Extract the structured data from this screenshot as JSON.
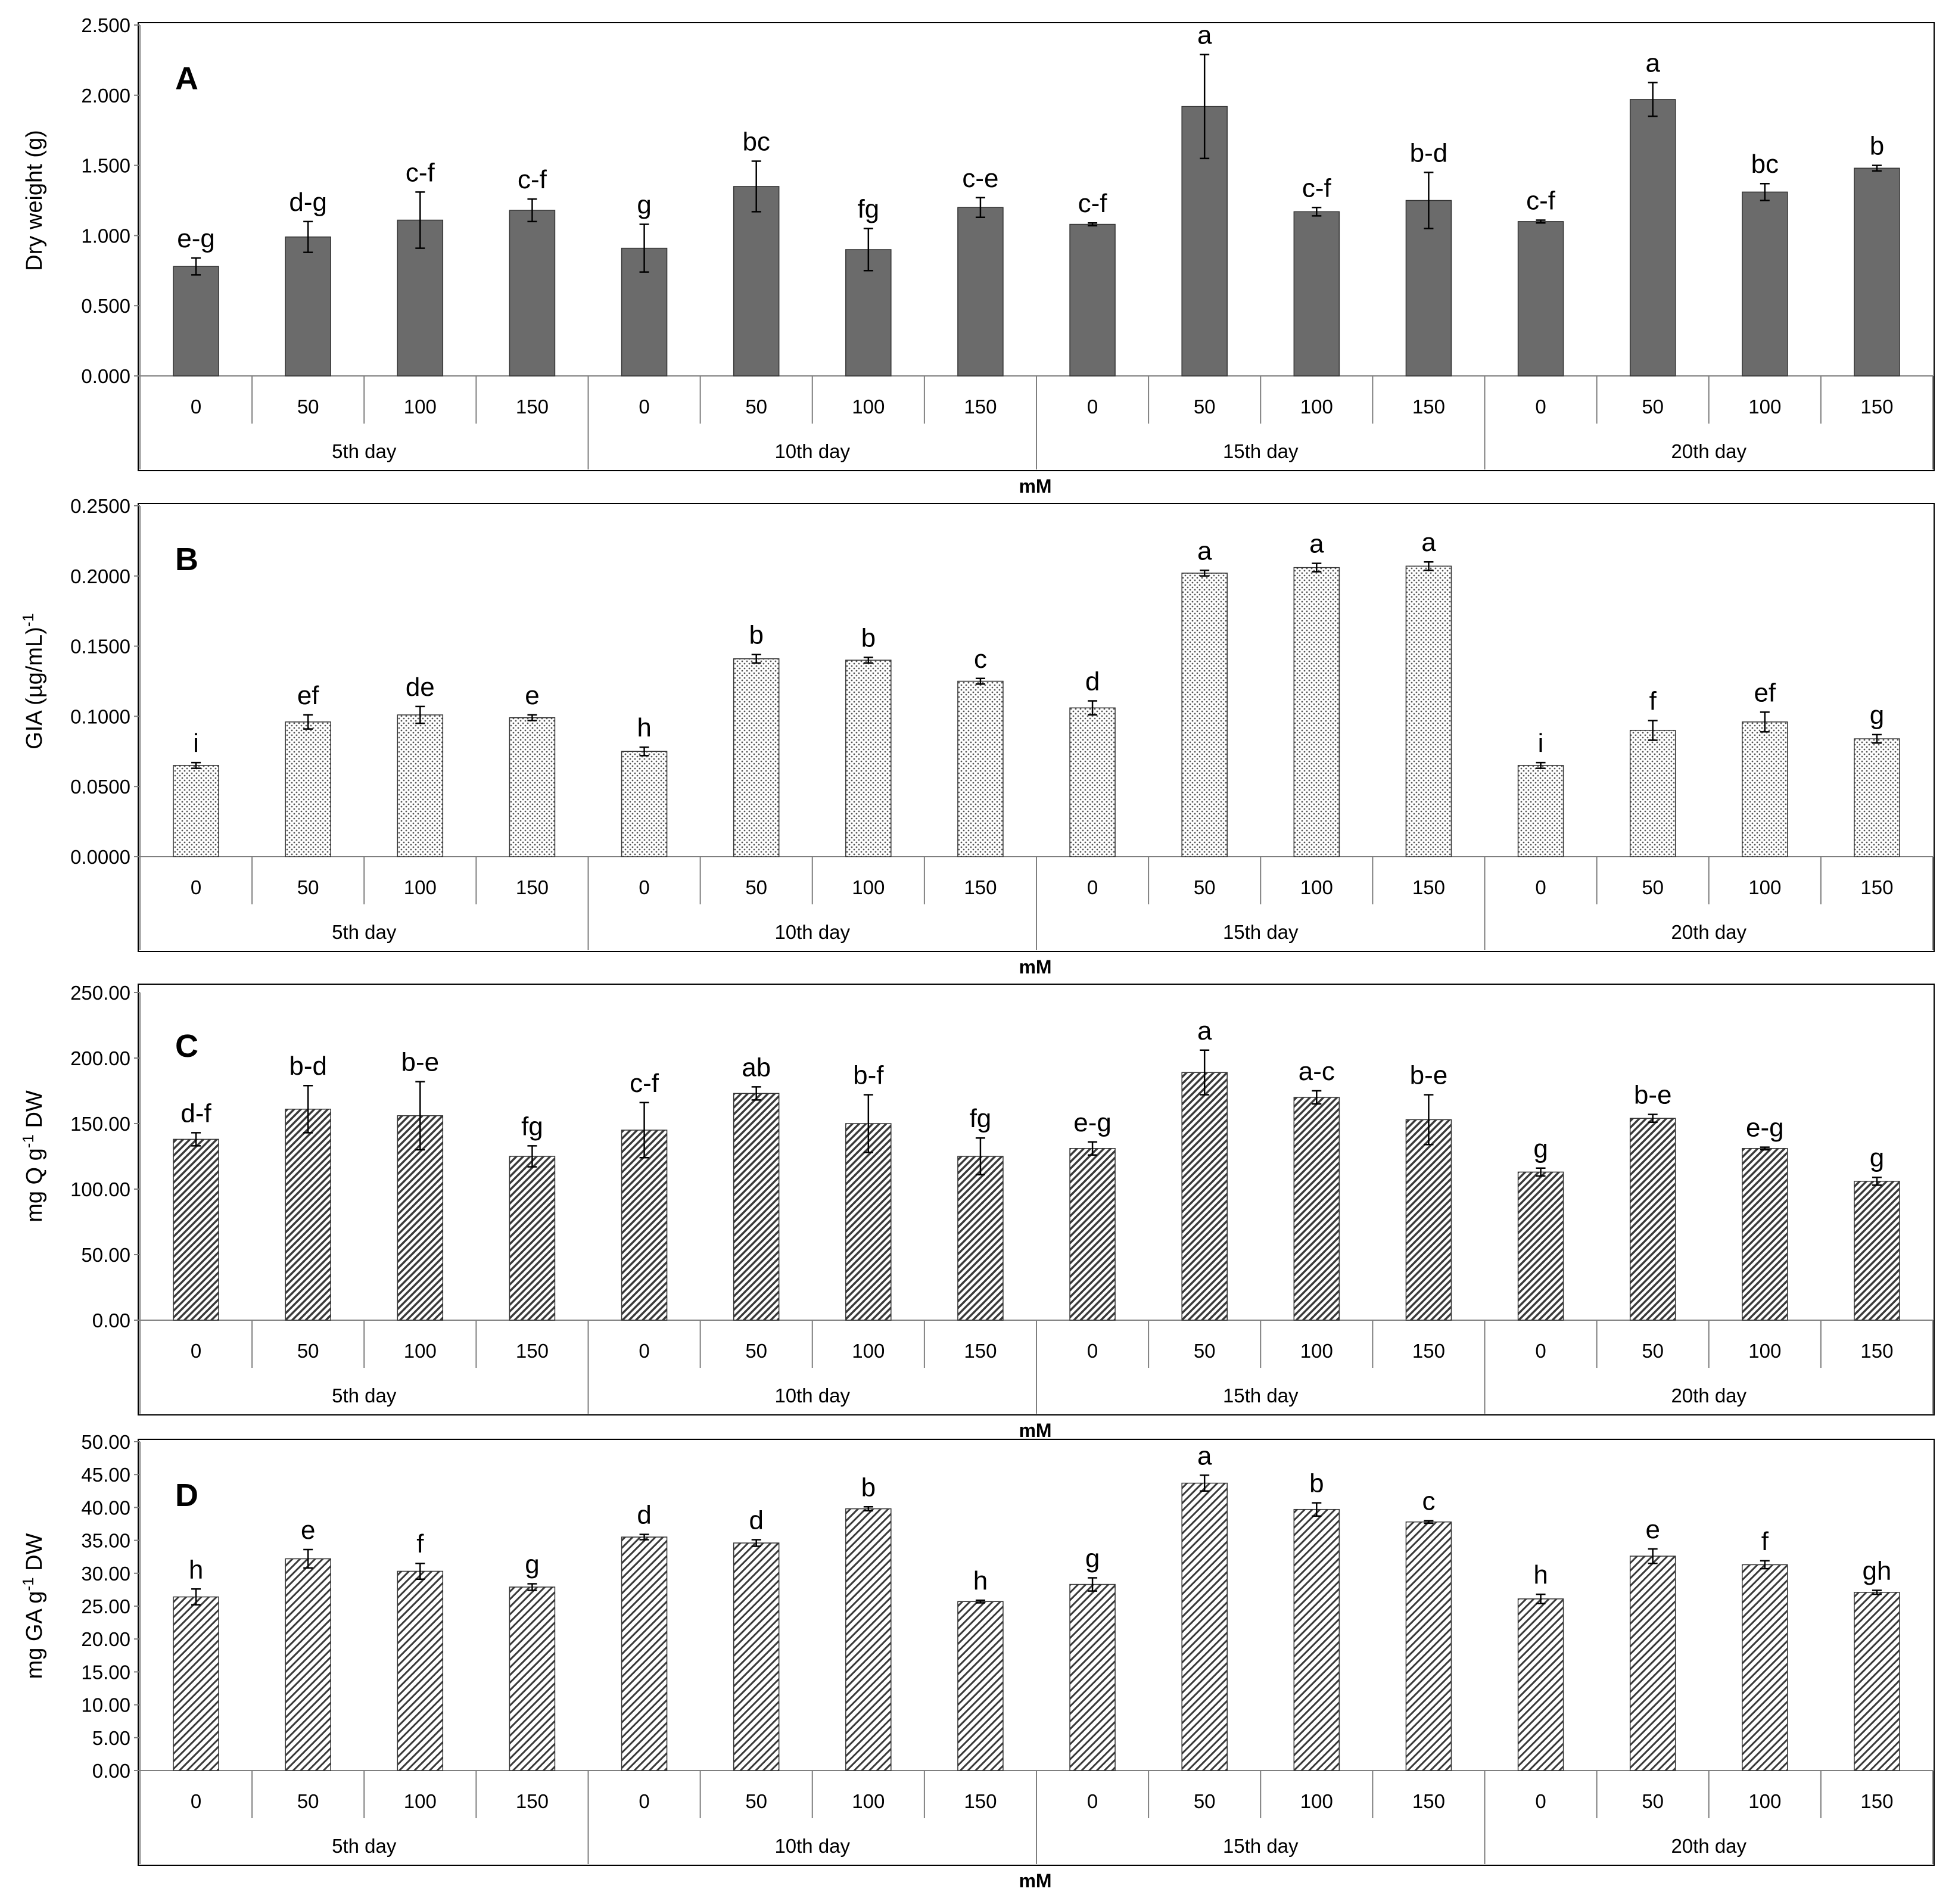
{
  "figure": {
    "colors": {
      "bar_fill_A": "#6b6b6b",
      "bar_stroke": "#333333",
      "axis": "#7f7f7f",
      "frame": "#000000",
      "text": "#000000"
    }
  },
  "chart_data": [
    {
      "type": "bar",
      "panel_label": "A",
      "pattern": "solid-dark",
      "ylabel": "Dry weight (g)",
      "xlabel": "mM",
      "ylim": [
        0,
        2.5
      ],
      "yticks": [
        "0.000",
        "0.500",
        "1.000",
        "1.500",
        "2.000",
        "2.500"
      ],
      "tick_values": [
        0,
        0.5,
        1.0,
        1.5,
        2.0,
        2.5
      ],
      "groups": [
        "5th day",
        "10th day",
        "15th day",
        "20th day"
      ],
      "categories": [
        "0",
        "50",
        "100",
        "150",
        "0",
        "50",
        "100",
        "150",
        "0",
        "50",
        "100",
        "150",
        "0",
        "50",
        "100",
        "150"
      ],
      "values": [
        0.78,
        0.99,
        1.11,
        1.18,
        0.91,
        1.35,
        0.9,
        1.2,
        1.08,
        1.92,
        1.17,
        1.25,
        1.1,
        1.97,
        1.31,
        1.48
      ],
      "errors": [
        0.06,
        0.11,
        0.2,
        0.08,
        0.17,
        0.18,
        0.15,
        0.07,
        0.01,
        0.37,
        0.03,
        0.2,
        0.01,
        0.12,
        0.06,
        0.02
      ],
      "letters": [
        "e-g",
        "d-g",
        "c-f",
        "c-f",
        "g",
        "bc",
        "fg",
        "c-e",
        "c-f",
        "a",
        "c-f",
        "b-d",
        "c-f",
        "a",
        "bc",
        "b"
      ]
    },
    {
      "type": "bar",
      "panel_label": "B",
      "pattern": "dots",
      "ylabel": "GIA (µg/mL)",
      "ylabel_sup": "-1",
      "xlabel": "mM",
      "ylim": [
        0,
        0.25
      ],
      "yticks": [
        "0.0000",
        "0.0500",
        "0.1000",
        "0.1500",
        "0.2000",
        "0.2500"
      ],
      "tick_values": [
        0,
        0.05,
        0.1,
        0.15,
        0.2,
        0.25
      ],
      "groups": [
        "5th day",
        "10th day",
        "15th day",
        "20th day"
      ],
      "categories": [
        "0",
        "50",
        "100",
        "150",
        "0",
        "50",
        "100",
        "150",
        "0",
        "50",
        "100",
        "150",
        "0",
        "50",
        "100",
        "150"
      ],
      "values": [
        0.065,
        0.096,
        0.101,
        0.099,
        0.075,
        0.141,
        0.14,
        0.125,
        0.106,
        0.202,
        0.206,
        0.207,
        0.065,
        0.09,
        0.096,
        0.084
      ],
      "errors": [
        0.002,
        0.005,
        0.006,
        0.002,
        0.003,
        0.003,
        0.002,
        0.002,
        0.005,
        0.002,
        0.003,
        0.003,
        0.002,
        0.007,
        0.007,
        0.003
      ],
      "letters": [
        "i",
        "ef",
        "de",
        "e",
        "h",
        "b",
        "b",
        "c",
        "d",
        "a",
        "a",
        "a",
        "i",
        "f",
        "ef",
        "g"
      ]
    },
    {
      "type": "bar",
      "panel_label": "C",
      "pattern": "diagonal-dense",
      "ylabel": "mg Q g",
      "ylabel_sup": "-1",
      "ylabel_tail": " DW",
      "xlabel": "mM",
      "ylim": [
        0,
        250
      ],
      "yticks": [
        "0.00",
        "50.00",
        "100.00",
        "150.00",
        "200.00",
        "250.00"
      ],
      "tick_values": [
        0,
        50,
        100,
        150,
        200,
        250
      ],
      "groups": [
        "5th day",
        "10th day",
        "15th day",
        "20th day"
      ],
      "categories": [
        "0",
        "50",
        "100",
        "150",
        "0",
        "50",
        "100",
        "150",
        "0",
        "50",
        "100",
        "150",
        "0",
        "50",
        "100",
        "150"
      ],
      "values": [
        138,
        161,
        156,
        125,
        145,
        173,
        150,
        125,
        131,
        189,
        170,
        153,
        113,
        154,
        131,
        106
      ],
      "errors": [
        5,
        18,
        26,
        8,
        21,
        5,
        22,
        14,
        5,
        17,
        5,
        19,
        3,
        3,
        1,
        3
      ],
      "letters": [
        "d-f",
        "b-d",
        "b-e",
        "fg",
        "c-f",
        "ab",
        "b-f",
        "fg",
        "e-g",
        "a",
        "a-c",
        "b-e",
        "g",
        "b-e",
        "e-g",
        "g"
      ]
    },
    {
      "type": "bar",
      "panel_label": "D",
      "pattern": "diagonal",
      "ylabel": "mg GA g",
      "ylabel_sup": "-1",
      "ylabel_tail": " DW",
      "xlabel": "mM",
      "ylim": [
        0,
        50
      ],
      "yticks": [
        "0.00",
        "5.00",
        "10.00",
        "15.00",
        "20.00",
        "25.00",
        "30.00",
        "35.00",
        "40.00",
        "45.00",
        "50.00"
      ],
      "tick_values": [
        0,
        5,
        10,
        15,
        20,
        25,
        30,
        35,
        40,
        45,
        50
      ],
      "groups": [
        "5th day",
        "10th day",
        "15th day",
        "20th day"
      ],
      "categories": [
        "0",
        "50",
        "100",
        "150",
        "0",
        "50",
        "100",
        "150",
        "0",
        "50",
        "100",
        "150",
        "0",
        "50",
        "100",
        "150"
      ],
      "values": [
        26.4,
        32.2,
        30.3,
        27.9,
        35.5,
        34.6,
        39.8,
        25.7,
        28.3,
        43.7,
        39.7,
        37.8,
        26.1,
        32.6,
        31.3,
        27.1
      ],
      "errors": [
        1.2,
        1.4,
        1.2,
        0.5,
        0.4,
        0.5,
        0.3,
        0.2,
        1.0,
        1.2,
        1.0,
        0.2,
        0.7,
        1.1,
        0.6,
        0.3
      ],
      "letters": [
        "h",
        "e",
        "f",
        "g",
        "d",
        "d",
        "b",
        "h",
        "g",
        "a",
        "b",
        "c",
        "h",
        "e",
        "f",
        "gh"
      ]
    }
  ]
}
